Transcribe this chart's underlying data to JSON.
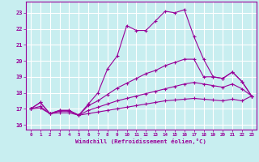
{
  "xlabel": "Windchill (Refroidissement éolien,°C)",
  "xlim": [
    -0.5,
    23.5
  ],
  "ylim": [
    15.7,
    23.7
  ],
  "yticks": [
    16,
    17,
    18,
    19,
    20,
    21,
    22,
    23
  ],
  "xticks": [
    0,
    1,
    2,
    3,
    4,
    5,
    6,
    7,
    8,
    9,
    10,
    11,
    12,
    13,
    14,
    15,
    16,
    17,
    18,
    19,
    20,
    21,
    22,
    23
  ],
  "bg_color": "#c8eef0",
  "grid_color": "#ffffff",
  "line_color": "#990099",
  "line1_x": [
    0,
    1,
    2,
    3,
    4,
    5,
    6,
    7,
    8,
    9,
    10,
    11,
    12,
    13,
    14,
    15,
    16,
    17,
    18,
    19,
    20,
    21,
    22,
    23
  ],
  "line1_y": [
    17.0,
    17.4,
    16.7,
    16.9,
    16.9,
    16.6,
    17.3,
    18.0,
    19.5,
    20.3,
    22.2,
    21.9,
    21.9,
    22.5,
    23.1,
    23.0,
    23.2,
    21.5,
    20.1,
    19.0,
    18.9,
    19.3,
    18.7,
    17.8
  ],
  "line2_x": [
    0,
    1,
    2,
    3,
    4,
    5,
    6,
    7,
    8,
    9,
    10,
    11,
    12,
    13,
    14,
    15,
    16,
    17,
    18,
    19,
    20,
    21,
    22,
    23
  ],
  "line2_y": [
    17.0,
    17.4,
    16.7,
    16.9,
    16.9,
    16.6,
    17.2,
    17.5,
    17.9,
    18.3,
    18.6,
    18.9,
    19.2,
    19.4,
    19.7,
    19.9,
    20.1,
    20.1,
    19.0,
    19.0,
    18.9,
    19.3,
    18.7,
    17.8
  ],
  "line3_x": [
    0,
    1,
    2,
    3,
    4,
    5,
    6,
    7,
    8,
    9,
    10,
    11,
    12,
    13,
    14,
    15,
    16,
    17,
    18,
    19,
    20,
    21,
    22,
    23
  ],
  "line3_y": [
    17.0,
    17.15,
    16.7,
    16.85,
    16.85,
    16.6,
    16.9,
    17.1,
    17.3,
    17.5,
    17.65,
    17.8,
    17.95,
    18.1,
    18.25,
    18.4,
    18.55,
    18.65,
    18.55,
    18.45,
    18.35,
    18.55,
    18.25,
    17.8
  ],
  "line4_x": [
    0,
    1,
    2,
    3,
    4,
    5,
    6,
    7,
    8,
    9,
    10,
    11,
    12,
    13,
    14,
    15,
    16,
    17,
    18,
    19,
    20,
    21,
    22,
    23
  ],
  "line4_y": [
    17.0,
    17.05,
    16.7,
    16.75,
    16.75,
    16.6,
    16.7,
    16.8,
    16.9,
    17.0,
    17.1,
    17.2,
    17.3,
    17.4,
    17.5,
    17.55,
    17.6,
    17.65,
    17.6,
    17.55,
    17.5,
    17.6,
    17.5,
    17.8
  ]
}
